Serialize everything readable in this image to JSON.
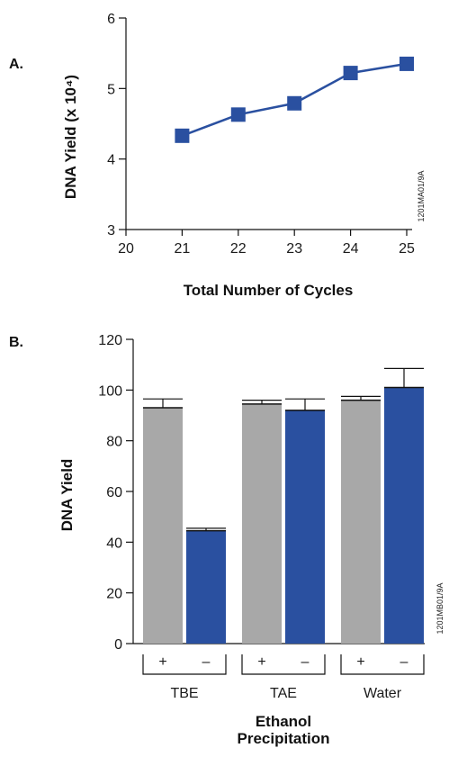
{
  "chart_data": [
    {
      "type": "line",
      "panel_label": "A.",
      "xlabel": "Total Number of Cycles",
      "ylabel": "DNA Yield (x 10⁴)",
      "xlim": [
        20,
        25
      ],
      "ylim": [
        3,
        6
      ],
      "x_ticks": [
        "20",
        "21",
        "22",
        "23",
        "24",
        "25"
      ],
      "y_ticks": [
        "3",
        "4",
        "5",
        "6"
      ],
      "x": [
        21,
        22,
        23,
        24,
        25
      ],
      "series": [
        {
          "values": [
            4.33,
            4.63,
            4.79,
            5.22,
            5.35
          ]
        }
      ],
      "figure_code": "1201MA01/9A",
      "grid": false,
      "colors": {
        "series": "#2a50a0"
      }
    },
    {
      "type": "bar",
      "panel_label": "B.",
      "ylabel": "DNA Yield",
      "xlabel_lines": [
        "Ethanol",
        "Precipitation"
      ],
      "ylim": [
        0,
        120
      ],
      "y_ticks": [
        "0",
        "20",
        "40",
        "60",
        "80",
        "100",
        "120"
      ],
      "groups": [
        "TBE",
        "TAE",
        "Water"
      ],
      "subcategories": [
        "+",
        "–"
      ],
      "series": [
        {
          "name": "+",
          "values": [
            93,
            94.5,
            96
          ],
          "errors": [
            3.5,
            1.5,
            1.5
          ]
        },
        {
          "name": "–",
          "values": [
            44.5,
            92,
            101
          ],
          "errors": [
            1,
            4.5,
            7.5
          ]
        }
      ],
      "figure_code": "1201MB01/9A",
      "grid": false,
      "colors": {
        "plus": "#a8a8a8",
        "minus": "#2a50a0"
      }
    }
  ]
}
